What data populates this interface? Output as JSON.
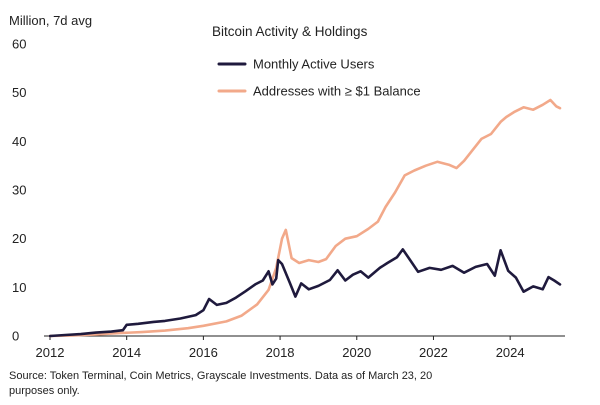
{
  "chart_data": {
    "type": "line",
    "title": "Bitcoin Activity & Holdings",
    "ylabel": "Million, 7d avg",
    "xlabel": "",
    "xlim": [
      2012,
      2025.3
    ],
    "ylim": [
      0,
      60
    ],
    "x_ticks": [
      2012,
      2014,
      2016,
      2018,
      2020,
      2022,
      2024
    ],
    "y_ticks": [
      0,
      10,
      20,
      30,
      40,
      50,
      60
    ],
    "grid": false,
    "legend_position": "top-center",
    "series": [
      {
        "name": "Monthly Active Users",
        "color": "#1f1a3d",
        "points": [
          [
            2012.0,
            0.0
          ],
          [
            2012.4,
            0.2
          ],
          [
            2012.8,
            0.4
          ],
          [
            2013.2,
            0.7
          ],
          [
            2013.6,
            0.9
          ],
          [
            2013.9,
            1.2
          ],
          [
            2014.0,
            2.3
          ],
          [
            2014.3,
            2.5
          ],
          [
            2014.7,
            2.9
          ],
          [
            2015.0,
            3.1
          ],
          [
            2015.4,
            3.6
          ],
          [
            2015.8,
            4.3
          ],
          [
            2016.0,
            5.3
          ],
          [
            2016.15,
            7.6
          ],
          [
            2016.35,
            6.4
          ],
          [
            2016.6,
            6.8
          ],
          [
            2016.85,
            7.9
          ],
          [
            2017.1,
            9.2
          ],
          [
            2017.35,
            10.6
          ],
          [
            2017.55,
            11.4
          ],
          [
            2017.7,
            13.3
          ],
          [
            2017.8,
            10.6
          ],
          [
            2017.9,
            11.8
          ],
          [
            2017.95,
            15.6
          ],
          [
            2018.05,
            14.8
          ],
          [
            2018.25,
            11.0
          ],
          [
            2018.4,
            8.1
          ],
          [
            2018.55,
            10.8
          ],
          [
            2018.75,
            9.6
          ],
          [
            2019.0,
            10.3
          ],
          [
            2019.3,
            11.5
          ],
          [
            2019.5,
            13.5
          ],
          [
            2019.7,
            11.4
          ],
          [
            2019.9,
            12.6
          ],
          [
            2020.1,
            13.3
          ],
          [
            2020.3,
            12.0
          ],
          [
            2020.6,
            14.0
          ],
          [
            2020.8,
            15.0
          ],
          [
            2021.05,
            16.2
          ],
          [
            2021.2,
            17.8
          ],
          [
            2021.4,
            15.5
          ],
          [
            2021.6,
            13.2
          ],
          [
            2021.9,
            14.0
          ],
          [
            2022.2,
            13.6
          ],
          [
            2022.5,
            14.4
          ],
          [
            2022.8,
            13.0
          ],
          [
            2023.1,
            14.2
          ],
          [
            2023.4,
            14.8
          ],
          [
            2023.6,
            12.4
          ],
          [
            2023.75,
            17.6
          ],
          [
            2023.95,
            13.4
          ],
          [
            2024.15,
            12.0
          ],
          [
            2024.35,
            9.1
          ],
          [
            2024.6,
            10.2
          ],
          [
            2024.85,
            9.6
          ],
          [
            2025.0,
            12.1
          ],
          [
            2025.15,
            11.4
          ],
          [
            2025.3,
            10.6
          ]
        ]
      },
      {
        "name": "Addresses with ≥ $1 Balance",
        "color": "#f2a98a",
        "points": [
          [
            2012.0,
            0.0
          ],
          [
            2012.6,
            0.1
          ],
          [
            2013.2,
            0.3
          ],
          [
            2013.8,
            0.6
          ],
          [
            2014.4,
            0.8
          ],
          [
            2015.0,
            1.1
          ],
          [
            2015.6,
            1.6
          ],
          [
            2016.0,
            2.1
          ],
          [
            2016.6,
            3.0
          ],
          [
            2017.0,
            4.2
          ],
          [
            2017.4,
            6.5
          ],
          [
            2017.7,
            9.5
          ],
          [
            2017.9,
            14.0
          ],
          [
            2018.05,
            20.0
          ],
          [
            2018.15,
            21.8
          ],
          [
            2018.3,
            16.0
          ],
          [
            2018.5,
            15.0
          ],
          [
            2018.75,
            15.6
          ],
          [
            2019.0,
            15.2
          ],
          [
            2019.2,
            15.8
          ],
          [
            2019.45,
            18.5
          ],
          [
            2019.7,
            20.0
          ],
          [
            2020.0,
            20.5
          ],
          [
            2020.3,
            22.0
          ],
          [
            2020.55,
            23.5
          ],
          [
            2020.75,
            26.5
          ],
          [
            2021.0,
            29.5
          ],
          [
            2021.25,
            33.0
          ],
          [
            2021.5,
            34.0
          ],
          [
            2021.8,
            35.0
          ],
          [
            2022.1,
            35.8
          ],
          [
            2022.4,
            35.2
          ],
          [
            2022.6,
            34.5
          ],
          [
            2022.8,
            36.0
          ],
          [
            2023.0,
            38.0
          ],
          [
            2023.25,
            40.5
          ],
          [
            2023.5,
            41.5
          ],
          [
            2023.75,
            44.0
          ],
          [
            2023.9,
            45.0
          ],
          [
            2024.1,
            46.0
          ],
          [
            2024.35,
            47.0
          ],
          [
            2024.6,
            46.5
          ],
          [
            2024.85,
            47.5
          ],
          [
            2025.05,
            48.5
          ],
          [
            2025.2,
            47.2
          ],
          [
            2025.3,
            46.8
          ]
        ]
      }
    ]
  },
  "source_text": "Source: Token Terminal, Coin Metrics, Grayscale Investments. Data as of March 23, 20\npurposes only."
}
